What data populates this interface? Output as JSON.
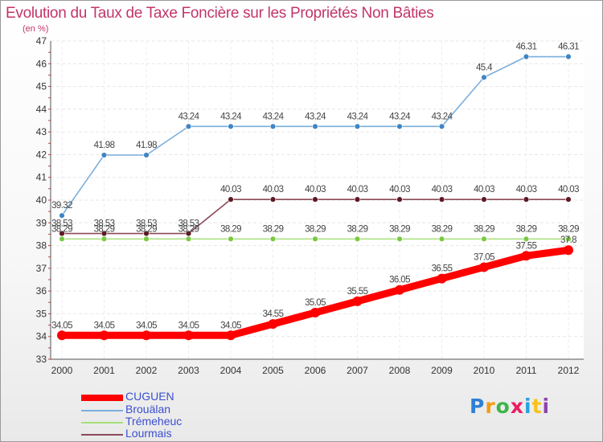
{
  "chart_data": {
    "type": "line",
    "title": "Evolution du Taux de Taxe Foncière sur les Propriétés Non Bâties",
    "subtitle": "(en %)",
    "x": [
      "2000",
      "2001",
      "2002",
      "2003",
      "2004",
      "2005",
      "2006",
      "2007",
      "2008",
      "2009",
      "2010",
      "2011",
      "2012"
    ],
    "ylim": [
      33,
      47
    ],
    "yticks": [
      33,
      34,
      35,
      36,
      37,
      38,
      39,
      40,
      41,
      42,
      43,
      44,
      45,
      46,
      47
    ],
    "series": [
      {
        "name": "Brouälan",
        "color": "#7aaedb",
        "marker": "#3f86c4",
        "values": [
          39.32,
          41.98,
          41.98,
          43.24,
          43.24,
          43.24,
          43.24,
          43.24,
          43.24,
          43.24,
          45.4,
          46.31,
          46.31
        ],
        "labels": [
          "39.32",
          "41.98",
          "41.98",
          "43.24",
          "43.24",
          "43.24",
          "43.24",
          "43.24",
          "43.24",
          "43.24",
          "45.4",
          "46.31",
          "46.31"
        ]
      },
      {
        "name": "Lourmais",
        "color": "#8c4a58",
        "marker": "#5e1a24",
        "values": [
          38.53,
          38.53,
          38.53,
          38.53,
          40.03,
          40.03,
          40.03,
          40.03,
          40.03,
          40.03,
          40.03,
          40.03,
          40.03
        ],
        "labels": [
          "38.53",
          "38.53",
          "38.53",
          "38.53",
          "40.03",
          "40.03",
          "40.03",
          "40.03",
          "40.03",
          "40.03",
          "40.03",
          "40.03",
          "40.03"
        ]
      },
      {
        "name": "Trémeheuc",
        "color": "#a6e07a",
        "marker": "#7ac943",
        "values": [
          38.29,
          38.29,
          38.29,
          38.29,
          38.29,
          38.29,
          38.29,
          38.29,
          38.29,
          38.29,
          38.29,
          38.29,
          38.29
        ],
        "labels": [
          "38.29",
          "38.29",
          "38.29",
          "38.29",
          "38.29",
          "38.29",
          "38.29",
          "38.29",
          "38.29",
          "38.29",
          "38.29",
          "38.29",
          "38.29"
        ]
      },
      {
        "name": "CUGUEN",
        "color": "#ff0000",
        "marker": "#ff0000",
        "values": [
          34.05,
          34.05,
          34.05,
          34.05,
          34.05,
          34.55,
          35.05,
          35.55,
          36.05,
          36.55,
          37.05,
          37.55,
          37.8
        ],
        "labels": [
          "34.05",
          "34.05",
          "34.05",
          "34.05",
          "34.05",
          "34.55",
          "35.05",
          "35.55",
          "36.05",
          "36.55",
          "37.05",
          "37.55",
          "37.8"
        ]
      }
    ],
    "legend": [
      {
        "name": "CUGUEN",
        "color": "#ff0000",
        "thick": true
      },
      {
        "name": "Brouälan",
        "color": "#7aaedb",
        "thick": false
      },
      {
        "name": "Trémeheuc",
        "color": "#a6e07a",
        "thick": false
      },
      {
        "name": "Lourmais",
        "color": "#8c4a58",
        "thick": false
      }
    ]
  },
  "logo": {
    "text": "Proxiti",
    "colors": [
      "#2e7fd6",
      "#f39c12",
      "#3cb54a",
      "#e91e63",
      "#27a3de",
      "#f9c21b",
      "#8e44ad"
    ]
  }
}
